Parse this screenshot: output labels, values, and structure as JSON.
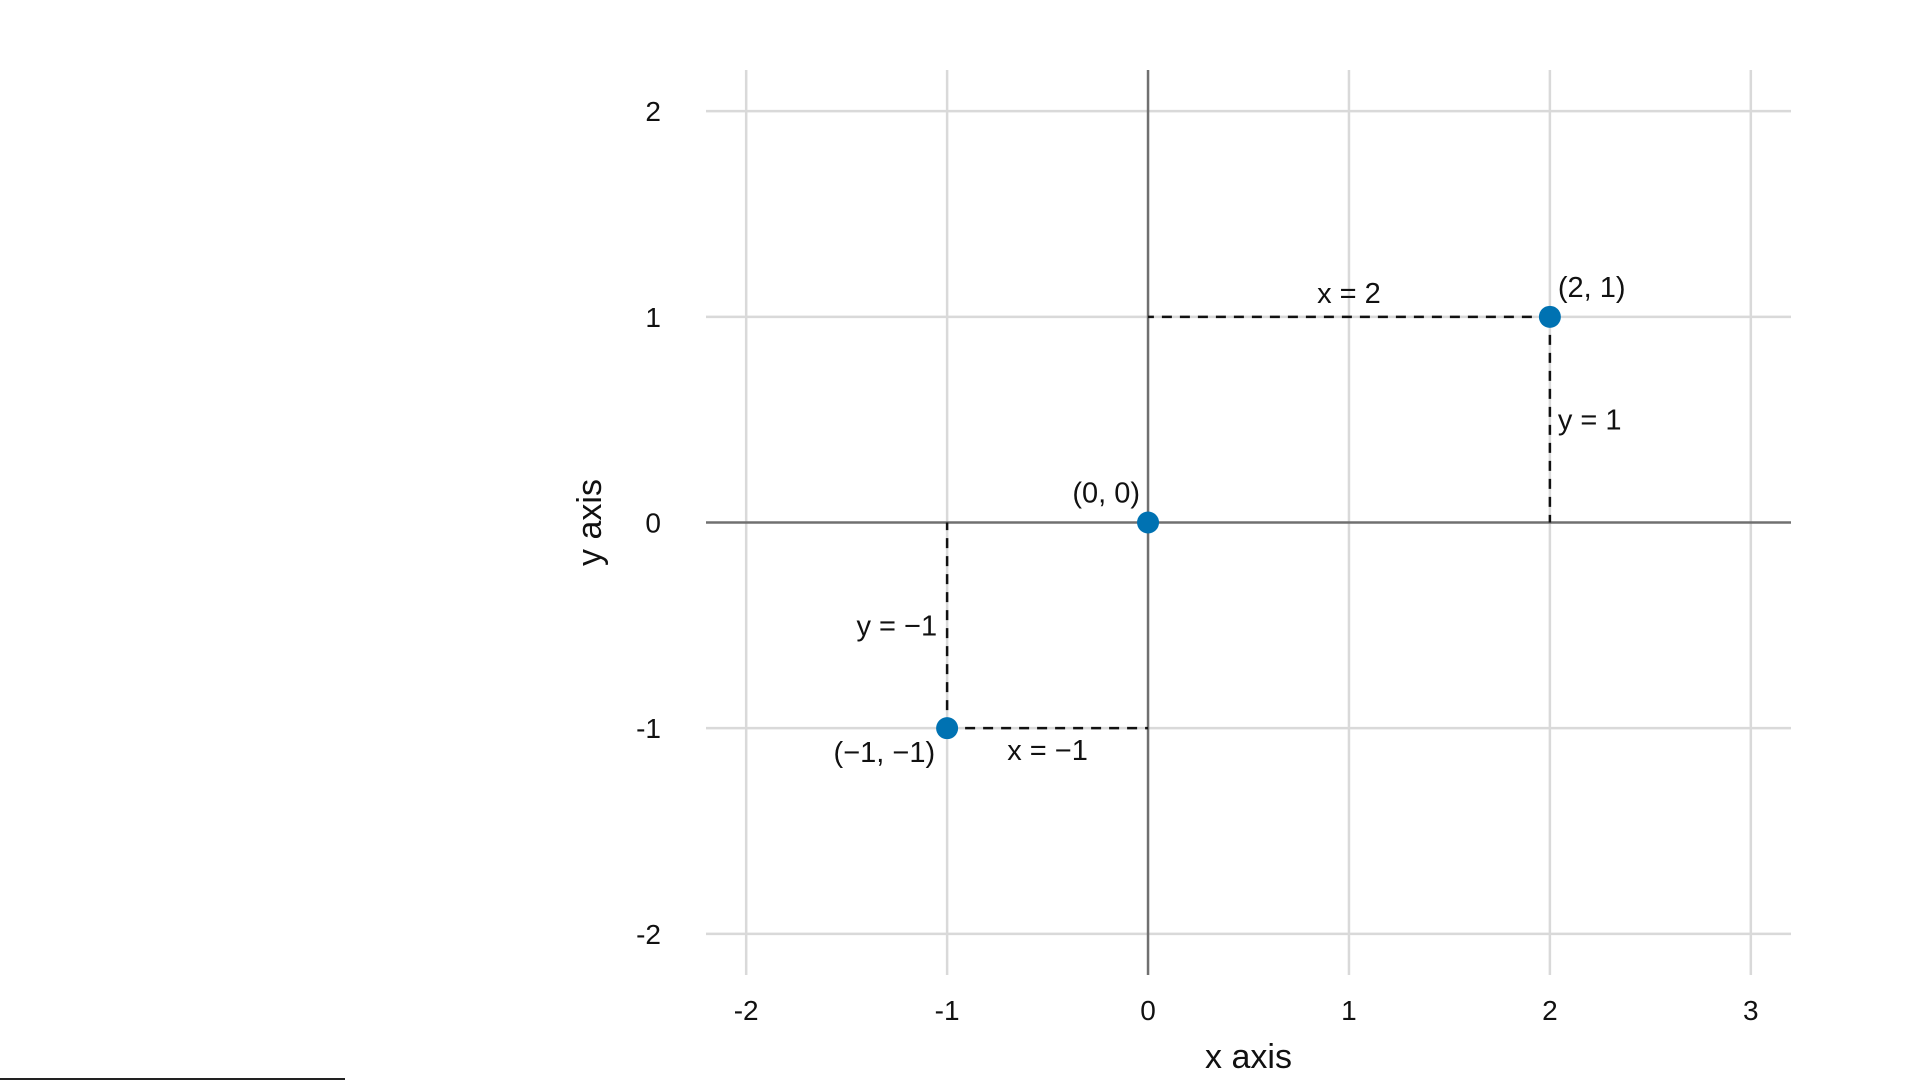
{
  "chart_data": {
    "type": "scatter",
    "title": "",
    "xlabel": "x axis",
    "ylabel": "y axis",
    "xlim": [
      -2.2,
      3.2
    ],
    "ylim": [
      -2.2,
      2.2
    ],
    "x_ticks": [
      -2,
      -1,
      0,
      1,
      2,
      3
    ],
    "y_ticks": [
      -2,
      -1,
      0,
      1,
      2
    ],
    "x_tick_labels": [
      "-2",
      "-1",
      "0",
      "1",
      "2",
      "3"
    ],
    "y_tick_labels": [
      "-2",
      "-1",
      "0",
      "1",
      "2"
    ],
    "grid": true,
    "point_color": "#0072b2",
    "points": [
      {
        "x": -1,
        "y": -1,
        "label": "(−1, −1)"
      },
      {
        "x": 0,
        "y": 0,
        "label": "(0, 0)"
      },
      {
        "x": 2,
        "y": 1,
        "label": "(2, 1)"
      }
    ],
    "guide_labels": {
      "neg_x": "x = −1",
      "neg_y": "y = −1",
      "pos_x": "x = 2",
      "pos_y": "y = 1"
    }
  }
}
